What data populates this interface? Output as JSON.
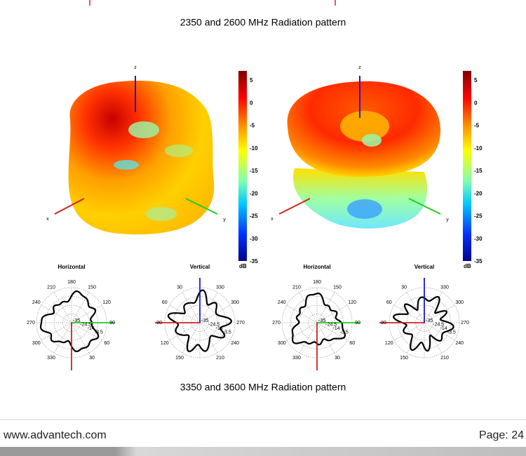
{
  "captions": [
    "2350 and 2600 MHz Radiation pattern",
    "3350 and 3600 MHz Radiation pattern"
  ],
  "patterns": [
    {
      "axis_labels": {
        "x": "x",
        "y": "y",
        "z": "z"
      },
      "colorbar": {
        "ticks": [
          5,
          0,
          -5,
          -10,
          -15,
          -20,
          -25,
          -30,
          -35
        ],
        "unit": "dB"
      }
    },
    {
      "axis_labels": {
        "x": "x",
        "y": "y",
        "z": "z"
      },
      "colorbar": {
        "ticks": [
          5,
          0,
          -5,
          -10,
          -15,
          -20,
          -25,
          -30,
          -35
        ],
        "unit": "dB"
      }
    }
  ],
  "polar_plots": [
    {
      "title": "Horizontal",
      "angle_labels": [
        "180",
        "150",
        "120",
        "90",
        "60",
        "30",
        "330",
        "300",
        "270",
        "240",
        "210"
      ],
      "ring_labels": [
        "-35",
        "-24.5",
        "-14",
        "-3.5"
      ]
    },
    {
      "title": "Vertical",
      "angle_labels": [
        "330",
        "300",
        "270",
        "240",
        "210",
        "150",
        "120",
        "90",
        "60",
        "30"
      ],
      "ring_labels": [
        "-35",
        "-24.5",
        "-14",
        "-3.5"
      ]
    },
    {
      "title": "Horizontal",
      "angle_labels": [
        "180",
        "150",
        "120",
        "90",
        "60",
        "30",
        "330",
        "300",
        "270",
        "240",
        "210"
      ],
      "ring_labels": [
        "-35",
        "-24.5",
        "-14",
        "-3.5"
      ]
    },
    {
      "title": "Vertical",
      "angle_labels": [
        "330",
        "300",
        "270",
        "240",
        "210",
        "150",
        "120",
        "90",
        "60",
        "30"
      ],
      "ring_labels": [
        "-35",
        "-24.5",
        "-14",
        "-3.5"
      ]
    }
  ],
  "footer": {
    "url": "www.advantech.com",
    "page": "Page: 24"
  }
}
